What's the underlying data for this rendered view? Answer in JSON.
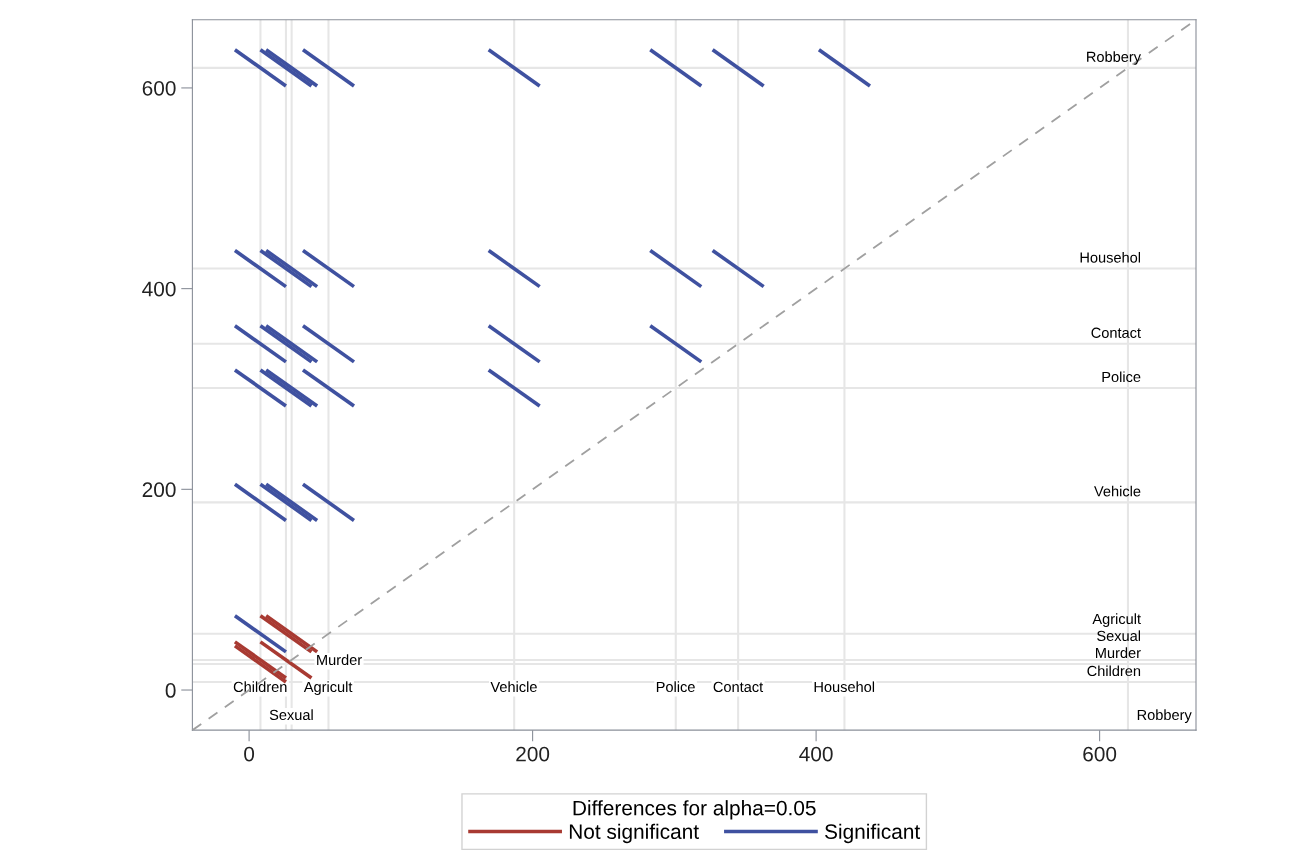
{
  "chart_data": {
    "type": "line",
    "legend_title": "Differences for alpha=0.05",
    "legend": "bottom",
    "grid": false,
    "line_style": "solid",
    "marker": "none",
    "xlim": [
      -40,
      668
    ],
    "ylim": [
      -40,
      668
    ],
    "xticks": [
      0,
      200,
      400,
      600
    ],
    "yticks": [
      0,
      200,
      400,
      600
    ],
    "series": [
      {
        "name": "Not significant",
        "color": "#a83a32",
        "x": [
          -10,
          26
        ],
        "values": [
          44,
          8
        ]
      },
      {
        "color": "#a83a32",
        "x": [
          -10,
          26
        ],
        "values": [
          48,
          12
        ]
      },
      {
        "color": "#a83a32",
        "x": [
          8,
          44
        ],
        "values": [
          48,
          12
        ]
      },
      {
        "color": "#a83a32",
        "x": [
          8,
          44
        ],
        "values": [
          74,
          38
        ]
      },
      {
        "color": "#a83a32",
        "x": [
          12,
          48
        ],
        "values": [
          74,
          38
        ]
      },
      {
        "name": "Significant",
        "color": "#3f51a0",
        "x": [
          -10,
          26
        ],
        "values": [
          74,
          38
        ]
      },
      {
        "color": "#3f51a0",
        "x": [
          -10,
          26
        ],
        "values": [
          205,
          169
        ]
      },
      {
        "color": "#3f51a0",
        "x": [
          8,
          44
        ],
        "values": [
          205,
          169
        ]
      },
      {
        "color": "#3f51a0",
        "x": [
          12,
          48
        ],
        "values": [
          205,
          169
        ]
      },
      {
        "color": "#3f51a0",
        "x": [
          38,
          74
        ],
        "values": [
          205,
          169
        ]
      },
      {
        "color": "#3f51a0",
        "x": [
          -10,
          26
        ],
        "values": [
          319,
          283
        ]
      },
      {
        "color": "#3f51a0",
        "x": [
          8,
          44
        ],
        "values": [
          319,
          283
        ]
      },
      {
        "color": "#3f51a0",
        "x": [
          12,
          48
        ],
        "values": [
          319,
          283
        ]
      },
      {
        "color": "#3f51a0",
        "x": [
          38,
          74
        ],
        "values": [
          319,
          283
        ]
      },
      {
        "color": "#3f51a0",
        "x": [
          169,
          205
        ],
        "values": [
          319,
          283
        ]
      },
      {
        "color": "#3f51a0",
        "x": [
          -10,
          26
        ],
        "values": [
          363,
          327
        ]
      },
      {
        "color": "#3f51a0",
        "x": [
          8,
          44
        ],
        "values": [
          363,
          327
        ]
      },
      {
        "color": "#3f51a0",
        "x": [
          12,
          48
        ],
        "values": [
          363,
          327
        ]
      },
      {
        "color": "#3f51a0",
        "x": [
          38,
          74
        ],
        "values": [
          363,
          327
        ]
      },
      {
        "color": "#3f51a0",
        "x": [
          169,
          205
        ],
        "values": [
          363,
          327
        ]
      },
      {
        "color": "#3f51a0",
        "x": [
          283,
          319
        ],
        "values": [
          363,
          327
        ]
      },
      {
        "color": "#3f51a0",
        "x": [
          -10,
          26
        ],
        "values": [
          438,
          402
        ]
      },
      {
        "color": "#3f51a0",
        "x": [
          8,
          44
        ],
        "values": [
          438,
          402
        ]
      },
      {
        "color": "#3f51a0",
        "x": [
          12,
          48
        ],
        "values": [
          438,
          402
        ]
      },
      {
        "color": "#3f51a0",
        "x": [
          38,
          74
        ],
        "values": [
          438,
          402
        ]
      },
      {
        "color": "#3f51a0",
        "x": [
          169,
          205
        ],
        "values": [
          438,
          402
        ]
      },
      {
        "color": "#3f51a0",
        "x": [
          283,
          319
        ],
        "values": [
          438,
          402
        ]
      },
      {
        "color": "#3f51a0",
        "x": [
          327,
          363
        ],
        "values": [
          438,
          402
        ]
      },
      {
        "color": "#3f51a0",
        "x": [
          -10,
          26
        ],
        "values": [
          638,
          602
        ]
      },
      {
        "color": "#3f51a0",
        "x": [
          8,
          44
        ],
        "values": [
          638,
          602
        ]
      },
      {
        "color": "#3f51a0",
        "x": [
          12,
          48
        ],
        "values": [
          638,
          602
        ]
      },
      {
        "color": "#3f51a0",
        "x": [
          38,
          74
        ],
        "values": [
          638,
          602
        ]
      },
      {
        "color": "#3f51a0",
        "x": [
          169,
          205
        ],
        "values": [
          638,
          602
        ]
      },
      {
        "color": "#3f51a0",
        "x": [
          283,
          319
        ],
        "values": [
          638,
          602
        ]
      },
      {
        "color": "#3f51a0",
        "x": [
          327,
          363
        ],
        "values": [
          638,
          602
        ]
      },
      {
        "color": "#3f51a0",
        "x": [
          402,
          438
        ],
        "values": [
          638,
          602
        ]
      },
      {
        "color": "#a0a0a0",
        "line_style": "dashed",
        "x": [
          -40,
          668
        ],
        "values": [
          -40,
          668
        ]
      }
    ],
    "ref_lines": [
      {
        "axis": "x",
        "value": 8,
        "label": "Children",
        "color": "#e6e6e6"
      },
      {
        "axis": "x",
        "value": 30,
        "label": "Sexual",
        "color": "#e6e6e6"
      },
      {
        "axis": "x",
        "value": 26,
        "label": "Murder",
        "color": "#e6e6e6"
      },
      {
        "axis": "x",
        "value": 56,
        "label": "Agricult",
        "color": "#e6e6e6"
      },
      {
        "axis": "x",
        "value": 187,
        "label": "Vehicle",
        "color": "#e6e6e6"
      },
      {
        "axis": "x",
        "value": 301,
        "label": "Police",
        "color": "#e6e6e6"
      },
      {
        "axis": "x",
        "value": 345,
        "label": "Contact",
        "color": "#e6e6e6"
      },
      {
        "axis": "x",
        "value": 420,
        "label": "Househol",
        "color": "#e6e6e6"
      },
      {
        "axis": "x",
        "value": 620,
        "label": "Robbery",
        "color": "#e6e6e6"
      },
      {
        "axis": "y",
        "value": 8,
        "label": "Children",
        "color": "#e6e6e6"
      },
      {
        "axis": "y",
        "value": 26,
        "label": "Murder",
        "color": "#e6e6e6"
      },
      {
        "axis": "y",
        "value": 30,
        "label": "Sexual",
        "color": "#e6e6e6"
      },
      {
        "axis": "y",
        "value": 56,
        "label": "Agricult",
        "color": "#e6e6e6"
      },
      {
        "axis": "y",
        "value": 187,
        "label": "Vehicle",
        "color": "#e6e6e6"
      },
      {
        "axis": "y",
        "value": 301,
        "label": "Police",
        "color": "#e6e6e6"
      },
      {
        "axis": "y",
        "value": 345,
        "label": "Contact",
        "color": "#e6e6e6"
      },
      {
        "axis": "y",
        "value": 420,
        "label": "Househol",
        "color": "#e6e6e6"
      },
      {
        "axis": "y",
        "value": 620,
        "label": "Robbery",
        "color": "#e6e6e6"
      }
    ]
  }
}
